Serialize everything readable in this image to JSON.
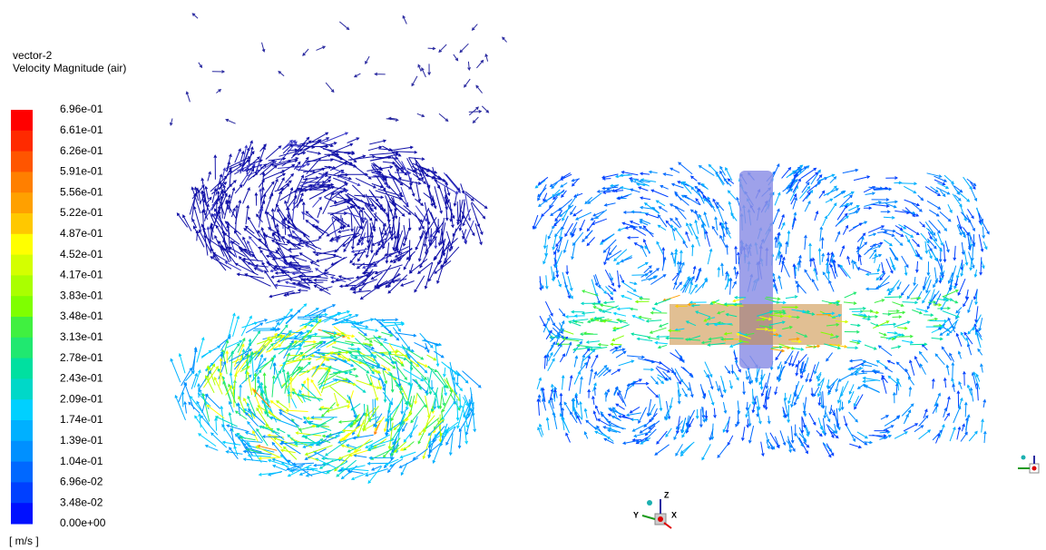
{
  "legend": {
    "title": "vector-2",
    "subtitle": "Velocity Magnitude (air)",
    "unit": "[ m/s ]",
    "labels": [
      "6.96e-01",
      "6.61e-01",
      "6.26e-01",
      "5.91e-01",
      "5.56e-01",
      "5.22e-01",
      "4.87e-01",
      "4.52e-01",
      "4.17e-01",
      "3.83e-01",
      "3.48e-01",
      "3.13e-01",
      "2.78e-01",
      "2.43e-01",
      "2.09e-01",
      "1.74e-01",
      "1.39e-01",
      "1.04e-01",
      "6.96e-02",
      "3.48e-02",
      "0.00e+00"
    ],
    "colors": [
      "#ff0000",
      "#ff2a00",
      "#ff5500",
      "#ff7f00",
      "#ffa000",
      "#ffc800",
      "#ffff00",
      "#d4ff00",
      "#aaff00",
      "#7fff00",
      "#40f040",
      "#20e870",
      "#00e0a0",
      "#00d8c8",
      "#00d0ff",
      "#00b0ff",
      "#0090ff",
      "#0068ff",
      "#0040ff",
      "#0010ff"
    ]
  },
  "triad": {
    "z": "Z",
    "y": "Y",
    "x": "X"
  }
}
